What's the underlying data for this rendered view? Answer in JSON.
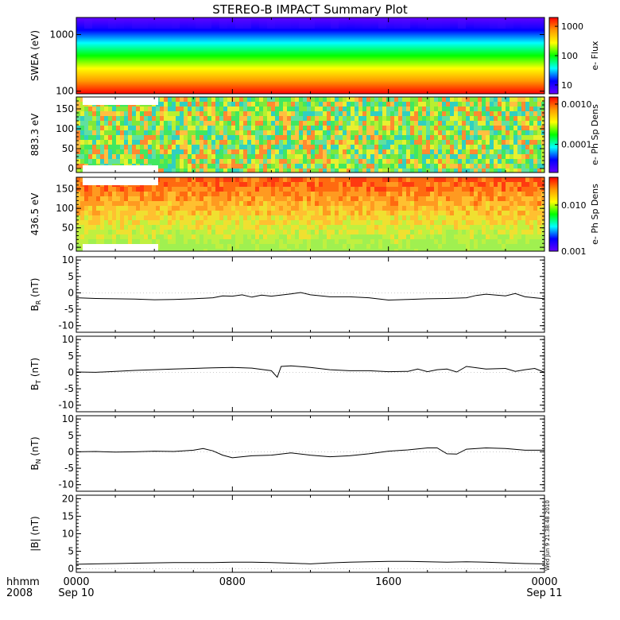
{
  "title": "STEREO-B IMPACT Summary Plot",
  "timestamp": "Wed Jun 9 21:38:48 2010",
  "x_axis": {
    "hours": [
      0,
      8,
      16,
      24
    ],
    "tick_labels": [
      "0000",
      "0800",
      "1600",
      "0000"
    ],
    "date_labels": [
      "Sep 10",
      "",
      "",
      "Sep 11"
    ],
    "left_label_top": "hhmm",
    "left_label_bottom": "2008"
  },
  "chart_data": [
    {
      "type": "heatmap",
      "ylabel": "SWEA (eV)",
      "yscale": "log",
      "ylim": [
        90,
        2000
      ],
      "yticks": [
        100,
        1000
      ],
      "ytick_labels": [
        "100",
        "1000"
      ],
      "colorbar_label": "e- Flux",
      "colorbar_scale": "log",
      "colorbar_range": [
        5,
        2000
      ],
      "colorbar_ticks": [
        10,
        100,
        1000
      ],
      "colorbar_tick_labels": [
        "10",
        "100",
        "1000"
      ],
      "colors": [
        "#ff0000",
        "#ff9900",
        "#ffff00",
        "#00ff00",
        "#00ffff",
        "#0000ff",
        "#6600ff"
      ]
    },
    {
      "type": "heatmap",
      "ylabel": "883.3 eV",
      "ylim": [
        -10,
        180
      ],
      "yticks": [
        0,
        50,
        100,
        150
      ],
      "ytick_labels": [
        "0",
        "50",
        "100",
        "150"
      ],
      "colorbar_label": "e- Ph Sp Dens",
      "colorbar_scale": "log",
      "colorbar_range": [
        2e-05,
        0.0015
      ],
      "colorbar_ticks": [
        0.0001,
        0.001
      ],
      "colorbar_tick_labels": [
        "0.0001",
        "0.0010"
      ]
    },
    {
      "type": "heatmap",
      "ylabel": "436.5 eV",
      "ylim": [
        -10,
        180
      ],
      "yticks": [
        0,
        50,
        100,
        150
      ],
      "ytick_labels": [
        "0",
        "50",
        "100",
        "150"
      ],
      "colorbar_label": "e- Ph Sp Dens",
      "colorbar_scale": "log",
      "colorbar_range": [
        0.001,
        0.04
      ],
      "colorbar_ticks": [
        0.001,
        0.01
      ],
      "colorbar_tick_labels": [
        "0.001",
        "0.010"
      ]
    },
    {
      "type": "line",
      "ylabel_main": "B",
      "ylabel_sub": "R",
      "ylabel_unit": " (nT)",
      "ylim": [
        -12,
        11
      ],
      "yticks": [
        -10,
        -5,
        0,
        5,
        10
      ],
      "ytick_labels": [
        "-10",
        "-5",
        "0",
        "5",
        "10"
      ],
      "x": [
        0,
        1,
        2,
        3,
        4,
        5,
        6,
        7,
        7.5,
        8,
        8.5,
        9,
        9.5,
        10,
        11,
        11.5,
        12,
        13,
        14,
        15,
        16,
        17,
        18,
        19,
        20,
        20.5,
        21,
        22,
        22.5,
        23,
        23.5,
        24
      ],
      "y": [
        -1.5,
        -1.7,
        -1.8,
        -1.9,
        -2.1,
        -2.0,
        -1.8,
        -1.5,
        -0.9,
        -1.0,
        -0.6,
        -1.3,
        -0.7,
        -1.0,
        -0.3,
        0.1,
        -0.6,
        -1.2,
        -1.2,
        -1.5,
        -2.2,
        -2.0,
        -1.8,
        -1.7,
        -1.5,
        -0.8,
        -0.4,
        -0.9,
        -0.2,
        -1.2,
        -1.5,
        -1.8
      ]
    },
    {
      "type": "line",
      "ylabel_main": "B",
      "ylabel_sub": "T",
      "ylabel_unit": " (nT)",
      "ylim": [
        -12,
        11
      ],
      "yticks": [
        -10,
        -5,
        0,
        5,
        10
      ],
      "ytick_labels": [
        "-10",
        "-5",
        "0",
        "5",
        "10"
      ],
      "x": [
        0,
        1,
        2,
        3,
        4,
        5,
        6,
        7,
        8,
        9,
        10,
        10.3,
        10.5,
        11,
        12,
        13,
        14,
        15,
        16,
        17,
        17.5,
        18,
        18.5,
        19,
        19.5,
        20,
        21,
        22,
        22.5,
        23,
        23.5,
        24
      ],
      "y": [
        0.1,
        0.0,
        0.3,
        0.6,
        0.8,
        1.0,
        1.2,
        1.4,
        1.5,
        1.3,
        0.5,
        -1.5,
        1.8,
        2.0,
        1.5,
        0.8,
        0.5,
        0.5,
        0.2,
        0.3,
        1.0,
        0.2,
        0.8,
        1.0,
        0.1,
        1.8,
        1.0,
        1.2,
        0.3,
        0.8,
        1.2,
        0.0
      ]
    },
    {
      "type": "line",
      "ylabel_main": "B",
      "ylabel_sub": "N",
      "ylabel_unit": " (nT)",
      "ylim": [
        -12,
        11
      ],
      "yticks": [
        -10,
        -5,
        0,
        5,
        10
      ],
      "ytick_labels": [
        "-10",
        "-5",
        "0",
        "5",
        "10"
      ],
      "x": [
        0,
        1,
        2,
        3,
        4,
        5,
        6,
        6.5,
        7,
        7.5,
        8,
        9,
        10,
        11,
        12,
        13,
        14,
        15,
        16,
        17,
        18,
        18.5,
        19,
        19.5,
        20,
        21,
        22,
        23,
        24
      ],
      "y": [
        0.0,
        0.1,
        -0.1,
        0.0,
        0.2,
        0.1,
        0.5,
        1.0,
        0.3,
        -1.0,
        -1.8,
        -1.2,
        -1.0,
        -0.3,
        -1.0,
        -1.5,
        -1.2,
        -0.6,
        0.2,
        0.6,
        1.2,
        1.2,
        -0.6,
        -0.7,
        0.8,
        1.2,
        1.0,
        0.5,
        0.5
      ]
    },
    {
      "type": "line",
      "ylabel": "|B| (nT)",
      "ylim": [
        -1,
        21
      ],
      "yticks": [
        0,
        5,
        10,
        15,
        20
      ],
      "ytick_labels": [
        "0",
        "5",
        "10",
        "15",
        "20"
      ],
      "x": [
        0,
        1,
        2,
        3,
        4,
        5,
        6,
        7,
        8,
        9,
        10,
        11,
        12,
        13,
        14,
        15,
        16,
        17,
        18,
        19,
        20,
        21,
        22,
        23,
        24
      ],
      "y": [
        1.3,
        1.4,
        1.5,
        1.6,
        1.7,
        1.8,
        1.8,
        1.8,
        1.9,
        1.9,
        1.8,
        1.6,
        1.4,
        1.7,
        1.9,
        2.0,
        2.1,
        2.1,
        2.0,
        1.9,
        2.0,
        1.9,
        1.7,
        1.5,
        1.4
      ]
    }
  ]
}
